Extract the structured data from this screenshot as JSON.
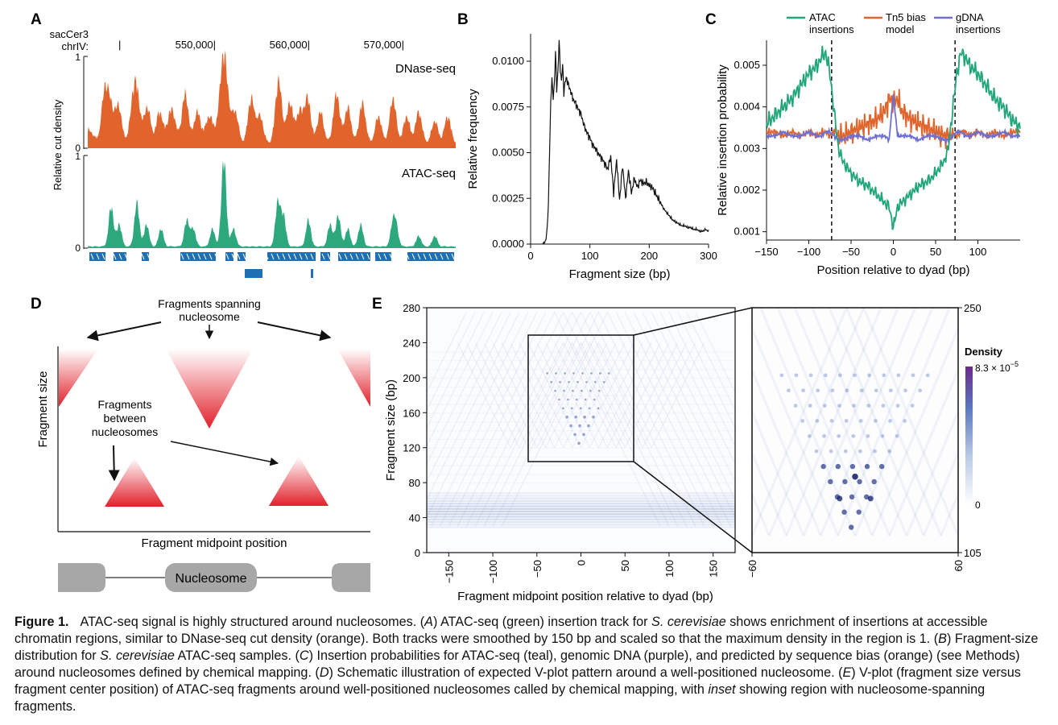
{
  "panels": {
    "A": {
      "letter": "A",
      "assembly": "sacCer3",
      "chrom": "chrIV:",
      "coords": [
        "550,000|",
        "560,000|",
        "570,000|"
      ],
      "ylabel": "Relative cut density",
      "tracks": [
        {
          "name": "DNase-seq",
          "color": "#e0642c",
          "ymax": "1",
          "ymin": "0"
        },
        {
          "name": "ATAC-seq",
          "color": "#2ca87c",
          "ymax": "1",
          "ymin": "0"
        }
      ],
      "gene_color": "#1f6fb5"
    },
    "B": {
      "letter": "B"
    },
    "C": {
      "letter": "C",
      "legend": [
        {
          "line1": "ATAC",
          "line2": "insertions",
          "color": "#21a57a"
        },
        {
          "line1": "Tn5 bias",
          "line2": "model",
          "color": "#e0652c"
        },
        {
          "line1": "gDNA",
          "line2": "insertions",
          "color": "#6f6fd2"
        }
      ]
    },
    "D": {
      "letter": "D",
      "top_label": [
        "Fragments spanning",
        "nucleosome"
      ],
      "mid_label": [
        "Fragments",
        "between",
        "nucleosomes"
      ],
      "ylabel": "Fragment size",
      "xlabel": "Fragment midpoint position",
      "nucleosome_label": "Nucleosome"
    },
    "E": {
      "letter": "E",
      "xlabel": "Fragment midpoint position relative to dyad (bp)",
      "ylabel": "Fragment size (bp)",
      "xticks": [
        "−150",
        "−100",
        "−50",
        "0",
        "50",
        "100",
        "150"
      ],
      "yticks": [
        "0",
        "40",
        "80",
        "120",
        "160",
        "200",
        "240",
        "280"
      ],
      "inset_xticks": [
        "−60",
        "60"
      ],
      "inset_yticks": [
        "105",
        "250"
      ],
      "legend_title": "Density",
      "legend_max": "8.3 × 10",
      "legend_max_exp": "−5",
      "legend_min": "0"
    }
  },
  "chart_data": [
    {
      "panel": "B",
      "type": "line",
      "title": "",
      "xlabel": "Fragment size (bp)",
      "ylabel": "Relative frequency",
      "xlim": [
        0,
        300
      ],
      "ylim": [
        0,
        0.0115
      ],
      "xticks": [
        0,
        100,
        200,
        300
      ],
      "yticks": [
        0.0,
        0.0025,
        0.005,
        0.0075,
        0.01
      ],
      "ytick_labels": [
        "0.0000",
        "0.0025",
        "0.0050",
        "0.0075",
        "0.0100"
      ],
      "color": "#111111",
      "series": [
        {
          "x": [
            20,
            24,
            26,
            28,
            30,
            32,
            34,
            36,
            38,
            40,
            42,
            44,
            46,
            48,
            50,
            52,
            54,
            56,
            58,
            60,
            64,
            68,
            72,
            76,
            80,
            85,
            90,
            95,
            100,
            105,
            110,
            115,
            120,
            125,
            130,
            135,
            140,
            145,
            150,
            155,
            160,
            165,
            170,
            175,
            180,
            185,
            190,
            195,
            200,
            205,
            210,
            215,
            220,
            225,
            230,
            235,
            240,
            245,
            250,
            255,
            260,
            265,
            270,
            275,
            280,
            285,
            290,
            295,
            300
          ],
          "y": [
            0.0,
            0.0001,
            0.0003,
            0.0009,
            0.0022,
            0.0051,
            0.0078,
            0.0091,
            0.0079,
            0.0088,
            0.0105,
            0.0084,
            0.0094,
            0.0111,
            0.0096,
            0.0089,
            0.0098,
            0.0083,
            0.0088,
            0.0091,
            0.0087,
            0.0083,
            0.0079,
            0.0077,
            0.0074,
            0.0071,
            0.0065,
            0.0061,
            0.0058,
            0.0054,
            0.0052,
            0.0049,
            0.0047,
            0.0044,
            0.0041,
            0.0048,
            0.0028,
            0.0046,
            0.0024,
            0.0043,
            0.0025,
            0.004,
            0.0028,
            0.0036,
            0.0031,
            0.0035,
            0.0033,
            0.0034,
            0.0032,
            0.0031,
            0.0028,
            0.0025,
            0.0022,
            0.0019,
            0.0017,
            0.0015,
            0.0013,
            0.0012,
            0.0011,
            0.001,
            0.001,
            0.0009,
            0.0009,
            0.0008,
            0.0008,
            0.0007,
            0.0007,
            0.0008,
            0.0007
          ]
        }
      ]
    },
    {
      "panel": "C",
      "type": "line",
      "title": "",
      "xlabel": "Position relative to dyad (bp)",
      "ylabel": "Relative insertion probability",
      "xlim": [
        -150,
        150
      ],
      "ylim": [
        0.0008,
        0.0056
      ],
      "xticks": [
        -150,
        -100,
        -50,
        0,
        50,
        100
      ],
      "xtick_labels": [
        "−150",
        "−100",
        "−50",
        "0",
        "50",
        "100"
      ],
      "yticks": [
        0.001,
        0.002,
        0.003,
        0.004,
        0.005
      ],
      "ytick_labels": [
        "0.001",
        "0.002",
        "0.003",
        "0.004",
        "0.005"
      ],
      "vlines": [
        -73,
        73
      ],
      "x": [
        -150,
        -140,
        -130,
        -120,
        -110,
        -100,
        -90,
        -85,
        -80,
        -75,
        -70,
        -65,
        -60,
        -50,
        -40,
        -30,
        -20,
        -10,
        -5,
        0,
        5,
        10,
        20,
        30,
        40,
        50,
        60,
        65,
        70,
        75,
        80,
        85,
        90,
        100,
        110,
        120,
        130,
        140,
        150
      ],
      "series": [
        {
          "name": "ATAC insertions",
          "color": "#21a57a",
          "values": [
            0.0036,
            0.0038,
            0.004,
            0.0042,
            0.0045,
            0.0048,
            0.005,
            0.0052,
            0.0053,
            0.0048,
            0.0039,
            0.003,
            0.0027,
            0.0024,
            0.0022,
            0.0021,
            0.0019,
            0.0017,
            0.0016,
            0.0011,
            0.0016,
            0.0017,
            0.0019,
            0.0021,
            0.0022,
            0.0024,
            0.0027,
            0.003,
            0.0039,
            0.0048,
            0.0053,
            0.0052,
            0.005,
            0.0048,
            0.0045,
            0.0042,
            0.004,
            0.0037,
            0.0035
          ]
        },
        {
          "name": "Tn5 bias model",
          "color": "#e0652c",
          "values": [
            0.0034,
            0.0034,
            0.0033,
            0.0034,
            0.0033,
            0.0034,
            0.0033,
            0.0034,
            0.0034,
            0.0033,
            0.0034,
            0.0033,
            0.0033,
            0.0034,
            0.0035,
            0.0036,
            0.0037,
            0.0039,
            0.0042,
            0.0041,
            0.0042,
            0.0039,
            0.0037,
            0.0036,
            0.0035,
            0.0034,
            0.0033,
            0.0033,
            0.0034,
            0.0033,
            0.0034,
            0.0034,
            0.0033,
            0.0034,
            0.0033,
            0.0034,
            0.0033,
            0.0034,
            0.0034
          ]
        },
        {
          "name": "gDNA insertions",
          "color": "#6f6fd2",
          "values": [
            0.0033,
            0.0033,
            0.0034,
            0.0033,
            0.0033,
            0.0034,
            0.0033,
            0.0033,
            0.0034,
            0.0034,
            0.0033,
            0.0032,
            0.0032,
            0.0033,
            0.0033,
            0.0032,
            0.0033,
            0.0033,
            0.0032,
            0.0043,
            0.0033,
            0.0033,
            0.0033,
            0.0032,
            0.0033,
            0.0033,
            0.0032,
            0.0032,
            0.0033,
            0.0034,
            0.0034,
            0.0033,
            0.0033,
            0.0034,
            0.0033,
            0.0033,
            0.0034,
            0.0033,
            0.0033
          ]
        }
      ]
    },
    {
      "panel": "E",
      "type": "heatmap",
      "title": "",
      "xlabel": "Fragment midpoint position relative to dyad (bp)",
      "ylabel": "Fragment size (bp)",
      "xlim": [
        -175,
        175
      ],
      "ylim": [
        0,
        280
      ],
      "xticks": [
        -150,
        -100,
        -50,
        0,
        50,
        100,
        150
      ],
      "yticks": [
        0,
        40,
        80,
        120,
        160,
        200,
        240,
        280
      ],
      "inset": {
        "xlim": [
          -60,
          60
        ],
        "ylim": [
          105,
          250
        ]
      },
      "colorbar": {
        "min": 0,
        "max": 8.3e-05,
        "colors": [
          "#ffffff",
          "#b9cbe6",
          "#5a78c0",
          "#6a2a8a"
        ]
      }
    }
  ],
  "caption": {
    "label": "Figure 1.",
    "segments": [
      {
        "t": "ATAC-seq signal is highly structured around nucleosomes. (",
        "i": false
      },
      {
        "t": "A",
        "i": true
      },
      {
        "t": ") ATAC-seq (green) insertion track for ",
        "i": false
      },
      {
        "t": "S. cerevisiae",
        "i": true
      },
      {
        "t": " shows enrichment of insertions at accessible chromatin regions, similar to DNase-seq cut density (orange). Both tracks were smoothed by 150 bp and scaled so that the maximum density in the region is 1. (",
        "i": false
      },
      {
        "t": "B",
        "i": true
      },
      {
        "t": ") Fragment-size distribution for ",
        "i": false
      },
      {
        "t": "S. cerevisiae",
        "i": true
      },
      {
        "t": " ATAC-seq samples. (",
        "i": false
      },
      {
        "t": "C",
        "i": true
      },
      {
        "t": ") Insertion probabilities for ATAC-seq (teal), genomic DNA (purple), and predicted by sequence bias (orange) (see Methods) around nucleosomes defined by chemical mapping. (",
        "i": false
      },
      {
        "t": "D",
        "i": true
      },
      {
        "t": ") Schematic illustration of expected V-plot pattern around a well-positioned nucleosome. (",
        "i": false
      },
      {
        "t": "E",
        "i": true
      },
      {
        "t": ") V-plot (fragment size versus fragment center position) of ATAC-seq fragments around well-positioned nucleosomes called by chemical mapping, with ",
        "i": false
      },
      {
        "t": "inset",
        "i": true
      },
      {
        "t": " showing region with nucleosome-spanning fragments.",
        "i": false
      }
    ]
  }
}
